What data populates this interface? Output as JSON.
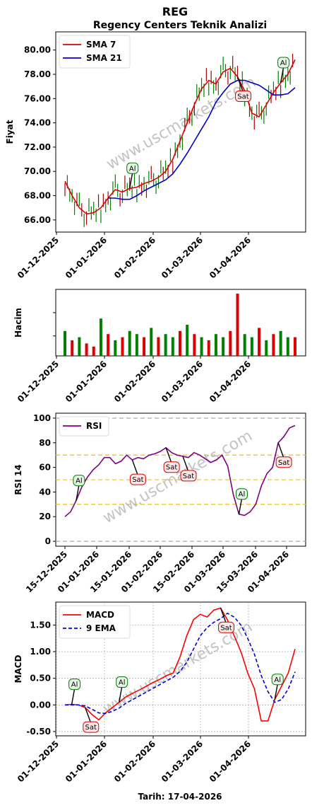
{
  "page": {
    "title": "REG",
    "subtitle": "Regency Centers Teknik Analizi",
    "footer": "Tarih: 17-04-2026",
    "watermark": "www.uscmarkets.com"
  },
  "chart_data": [
    {
      "type": "line",
      "id": "price",
      "ylabel": "Fiyat",
      "ylim": [
        65,
        81.5
      ],
      "yticks": [
        "66.00",
        "68.00",
        "70.00",
        "72.00",
        "74.00",
        "76.00",
        "78.00",
        "80.00"
      ],
      "xticks": [
        "01-12-2025",
        "01-01-2026",
        "01-02-2026",
        "01-03-2026",
        "01-04-2026"
      ],
      "legend": "upper-left",
      "series": [
        {
          "name": "SMA 7",
          "color": "#dd0000",
          "values": [
            69.2,
            68.0,
            67.0,
            66.5,
            66.6,
            67.0,
            67.8,
            68.5,
            68.3,
            68.6,
            68.7,
            69.0,
            69.2,
            69.5,
            70.0,
            71.0,
            72.5,
            74.0,
            75.5,
            76.8,
            77.5,
            77.2,
            78.2,
            78.5,
            77.8,
            76.6,
            74.8,
            74.5,
            75.5,
            76.5,
            77.3,
            78.0,
            79.2
          ]
        },
        {
          "name": "SMA 21",
          "color": "#0000cc",
          "values": [
            null,
            null,
            null,
            null,
            null,
            null,
            67.8,
            67.8,
            67.7,
            67.7,
            68.0,
            68.4,
            68.7,
            69.0,
            69.3,
            69.8,
            70.6,
            71.5,
            72.5,
            73.5,
            74.5,
            75.7,
            76.5,
            77.2,
            77.5,
            77.5,
            77.3,
            77.1,
            76.7,
            76.3,
            76.3,
            76.4,
            76.9
          ]
        }
      ],
      "annotations": [
        {
          "label": "Al",
          "type": "buy",
          "index": 9
        },
        {
          "label": "Sat",
          "type": "sell",
          "index": 24
        },
        {
          "label": "Al",
          "type": "buy",
          "index": 30
        }
      ]
    },
    {
      "type": "bar",
      "id": "volume",
      "ylabel": "Hacim",
      "xticks": [
        "01-12-2025",
        "01-01-2026",
        "01-02-2026",
        "01-03-2026",
        "01-04-2026"
      ],
      "values": [
        0.4,
        0.25,
        0.3,
        0.2,
        0.15,
        0.6,
        0.35,
        0.25,
        0.3,
        0.4,
        0.35,
        0.3,
        0.45,
        0.3,
        0.35,
        0.3,
        0.4,
        0.5,
        0.35,
        0.3,
        0.25,
        0.35,
        0.3,
        0.4,
        1.0,
        0.35,
        0.3,
        0.45,
        0.25,
        0.35,
        0.4,
        0.3,
        0.3
      ],
      "colors": [
        "g",
        "r",
        "g",
        "r",
        "r",
        "g",
        "r",
        "g",
        "r",
        "g",
        "g",
        "r",
        "g",
        "r",
        "g",
        "g",
        "r",
        "g",
        "r",
        "g",
        "r",
        "g",
        "g",
        "r",
        "r",
        "g",
        "g",
        "r",
        "g",
        "r",
        "g",
        "g",
        "r"
      ]
    },
    {
      "type": "line",
      "id": "rsi",
      "ylabel": "RSI 14",
      "ylim": [
        -4,
        104
      ],
      "yticks": [
        "0",
        "20",
        "40",
        "60",
        "80",
        "100"
      ],
      "xticks": [
        "15-12-2025",
        "01-01-2026",
        "15-01-2026",
        "01-02-2026",
        "15-02-2026",
        "01-03-2026",
        "15-03-2026",
        "01-04-2026",
        "15-04-2026"
      ],
      "hlines": [
        0,
        30,
        50,
        70,
        100
      ],
      "legend": "upper-left",
      "series": [
        {
          "name": "RSI",
          "color": "#800080",
          "values": [
            20,
            24,
            33,
            44,
            52,
            58,
            62,
            68,
            68,
            63,
            65,
            70,
            66,
            68,
            67,
            70,
            71,
            73,
            76,
            72,
            70,
            69,
            68,
            72,
            70,
            67,
            64,
            66,
            70,
            61,
            38,
            22,
            21,
            24,
            30,
            45,
            55,
            60,
            80,
            85,
            92,
            94
          ]
        }
      ],
      "annotations": [
        {
          "label": "Al",
          "type": "buy",
          "index": 2
        },
        {
          "label": "Sat",
          "type": "sell",
          "index": 12
        },
        {
          "label": "Sat",
          "type": "sell",
          "index": 18
        },
        {
          "label": "Sat",
          "type": "sell",
          "index": 21
        },
        {
          "label": "Al",
          "type": "buy",
          "index": 31
        },
        {
          "label": "Sat",
          "type": "sell",
          "index": 38
        }
      ]
    },
    {
      "type": "line",
      "id": "macd",
      "ylabel": "MACD",
      "ylim": [
        -0.58,
        1.93
      ],
      "yticks": [
        "-0.50",
        "0.00",
        "0.50",
        "1.00",
        "1.50"
      ],
      "xticks": [
        "01-12-2025",
        "01-01-2026",
        "01-02-2026",
        "01-03-2026",
        "01-04-2026"
      ],
      "xlabel": "Tarih: 17-04-2026",
      "legend": "upper-left",
      "series": [
        {
          "name": "MACD",
          "color": "#ff0000",
          "values": [
            0.0,
            0.01,
            0.0,
            -0.05,
            -0.18,
            -0.28,
            -0.15,
            -0.05,
            0.05,
            0.15,
            0.22,
            0.28,
            0.35,
            0.42,
            0.48,
            0.55,
            0.6,
            0.9,
            1.3,
            1.6,
            1.7,
            1.65,
            1.78,
            1.82,
            1.6,
            1.3,
            1.0,
            0.6,
            0.3,
            -0.3,
            -0.3,
            0.1,
            0.35,
            0.6,
            1.05
          ]
        },
        {
          "name": "9 EMA",
          "color": "#0000dd",
          "values": [
            0.0,
            0.0,
            0.0,
            -0.02,
            -0.08,
            -0.15,
            -0.16,
            -0.12,
            -0.06,
            0.03,
            0.1,
            0.17,
            0.24,
            0.31,
            0.38,
            0.45,
            0.52,
            0.63,
            0.8,
            1.05,
            1.3,
            1.45,
            1.55,
            1.62,
            1.72,
            1.65,
            1.5,
            1.25,
            0.95,
            0.55,
            0.25,
            0.05,
            0.1,
            0.3,
            0.62
          ]
        }
      ],
      "annotations": [
        {
          "label": "Al",
          "type": "buy",
          "index": 1
        },
        {
          "label": "Sat",
          "type": "sell",
          "index": 3
        },
        {
          "label": "Al",
          "type": "buy",
          "index": 8
        },
        {
          "label": "Sat",
          "type": "sell",
          "index": 23
        },
        {
          "label": "Al",
          "type": "buy",
          "index": 31
        }
      ]
    }
  ]
}
